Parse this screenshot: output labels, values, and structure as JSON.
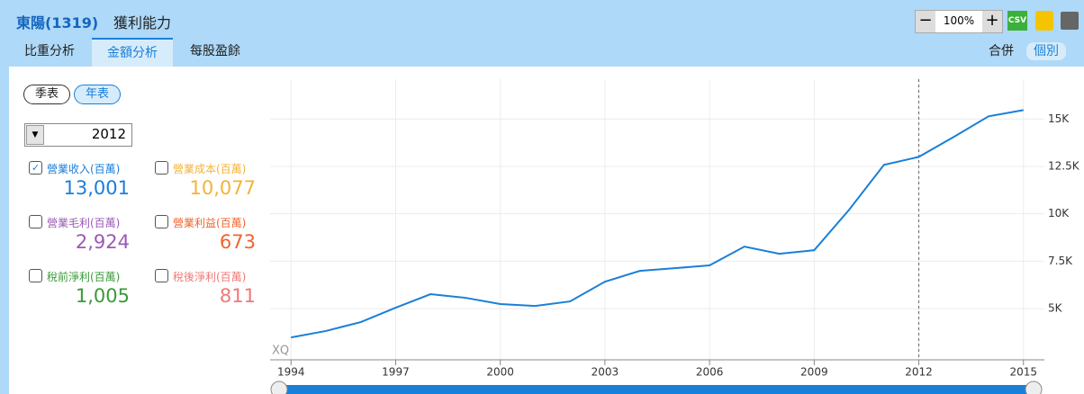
{
  "header": {
    "stock": "東陽(1319)",
    "title": "獲利能力",
    "zoom": "100%",
    "csv": "CSV"
  },
  "tabs": [
    "比重分析",
    "金額分析",
    "每股盈餘"
  ],
  "active_tab": 1,
  "scope": [
    "合併",
    "個別"
  ],
  "active_scope": 1,
  "period": [
    "季表",
    "年表"
  ],
  "active_period": 1,
  "selected_year": 2012,
  "metrics": [
    {
      "label": "營業收入(百萬)",
      "value": "13,001",
      "color": "#1a7fd8",
      "checked": true
    },
    {
      "label": "營業成本(百萬)",
      "value": "10,077",
      "color": "#f5b335",
      "checked": false
    },
    {
      "label": "營業毛利(百萬)",
      "value": "2,924",
      "color": "#9b59b6",
      "checked": false
    },
    {
      "label": "營業利益(百萬)",
      "value": "673",
      "color": "#f0642d",
      "checked": false
    },
    {
      "label": "稅前淨利(百萬)",
      "value": "1,005",
      "color": "#3a9a3a",
      "checked": false
    },
    {
      "label": "稅後淨利(百萬)",
      "value": "811",
      "color": "#f07878",
      "checked": false
    }
  ],
  "chart_data": {
    "type": "line",
    "watermark": "XQ",
    "color": "#1a7fd8",
    "grid": true,
    "x": [
      1994,
      1995,
      1996,
      1997,
      1998,
      1999,
      2000,
      2001,
      2002,
      2003,
      2004,
      2005,
      2006,
      2007,
      2008,
      2009,
      2010,
      2011,
      2012,
      2013,
      2014,
      2015
    ],
    "values": [
      3480,
      3820,
      4290,
      5050,
      5760,
      5570,
      5240,
      5140,
      5380,
      6420,
      6990,
      7130,
      7280,
      8270,
      7890,
      8080,
      10210,
      12580,
      13001,
      14050,
      15140,
      15470
    ],
    "xlim": [
      1993.4,
      2015.6
    ],
    "ylim": [
      2300,
      17100
    ],
    "xticks": [
      1994,
      1997,
      2000,
      2003,
      2006,
      2009,
      2012,
      2015
    ],
    "yticks": [
      {
        "value": 5000,
        "label": "5K"
      },
      {
        "value": 7500,
        "label": "7.5K"
      },
      {
        "value": 10000,
        "label": "10K"
      },
      {
        "value": 12500,
        "label": "12.5K"
      },
      {
        "value": 15000,
        "label": "15K"
      }
    ]
  }
}
